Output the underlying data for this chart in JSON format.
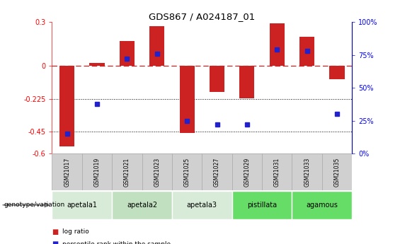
{
  "title": "GDS867 / A024187_01",
  "samples": [
    "GSM21017",
    "GSM21019",
    "GSM21021",
    "GSM21023",
    "GSM21025",
    "GSM21027",
    "GSM21029",
    "GSM21031",
    "GSM21033",
    "GSM21035"
  ],
  "log_ratios": [
    -0.55,
    0.02,
    0.17,
    0.27,
    -0.46,
    -0.18,
    -0.22,
    0.29,
    0.2,
    -0.09
  ],
  "percentile_ranks": [
    15,
    38,
    72,
    76,
    25,
    22,
    22,
    79,
    78,
    30
  ],
  "ylim_left": [
    -0.6,
    0.3
  ],
  "ylim_right": [
    0,
    100
  ],
  "yticks_left": [
    -0.6,
    -0.45,
    -0.225,
    0.0,
    0.3
  ],
  "yticks_right": [
    0,
    25,
    50,
    75,
    100
  ],
  "ytick_labels_left": [
    "-0.6",
    "-0.45",
    "-0.225",
    "0",
    "0.3"
  ],
  "ytick_labels_right": [
    "0%",
    "25%",
    "50%",
    "75%",
    "100%"
  ],
  "hline_y": 0.0,
  "dotted_lines": [
    -0.225,
    -0.45
  ],
  "bar_color": "#cc2222",
  "point_color": "#2222cc",
  "bar_width": 0.5,
  "genotype_groups": [
    {
      "label": "apetala1",
      "samples": [
        0,
        1
      ],
      "color": "#d8ead8"
    },
    {
      "label": "apetala2",
      "samples": [
        2,
        3
      ],
      "color": "#c0e0c0"
    },
    {
      "label": "apetala3",
      "samples": [
        4,
        5
      ],
      "color": "#d8ead8"
    },
    {
      "label": "pistillata",
      "samples": [
        6,
        7
      ],
      "color": "#66dd66"
    },
    {
      "label": "agamous",
      "samples": [
        8,
        9
      ],
      "color": "#66dd66"
    }
  ],
  "sample_cell_color": "#d0d0d0",
  "sample_cell_edge": "#aaaaaa",
  "legend_bar_label": "log ratio",
  "legend_point_label": "percentile rank within the sample",
  "genotype_label": "genotype/variation",
  "background_color": "#ffffff"
}
